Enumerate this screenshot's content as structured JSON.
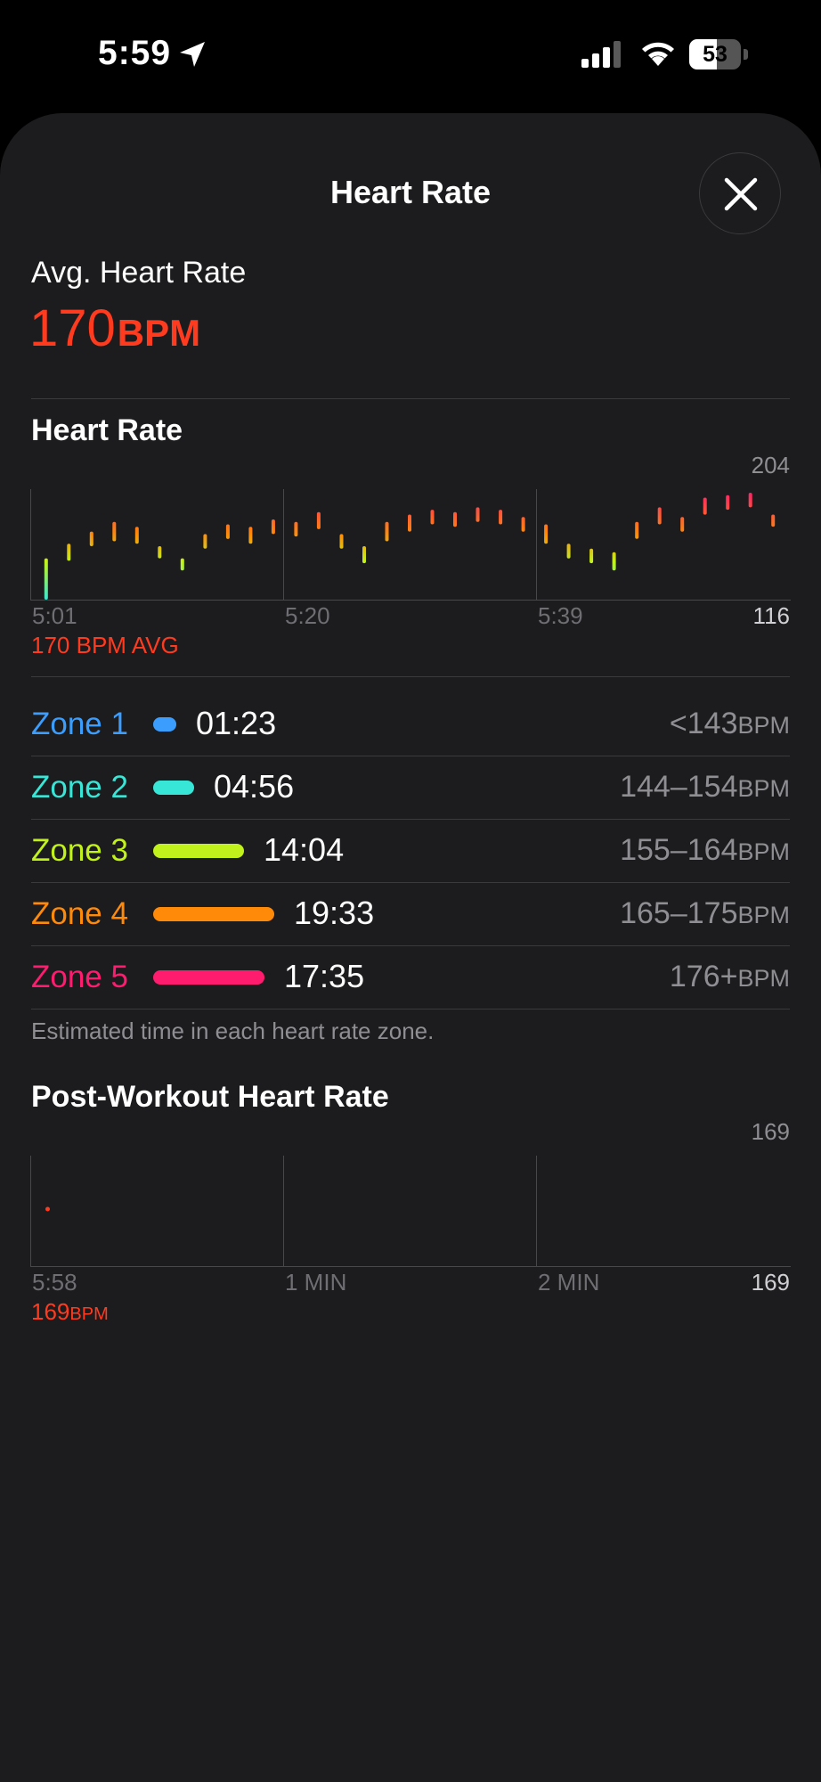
{
  "status_bar": {
    "time": "5:59",
    "battery_level": "53",
    "battery_fraction": 0.53
  },
  "sheet": {
    "title": "Heart Rate",
    "close_icon": "close-icon"
  },
  "summary": {
    "label": "Avg. Heart Rate",
    "value": "170",
    "unit": "BPM"
  },
  "heart_rate_chart": {
    "title": "Heart Rate",
    "y_max_label": "204",
    "y_min_label": "116",
    "x_labels": [
      "5:01",
      "5:20",
      "5:39"
    ],
    "avg_caption": "170 BPM AVG"
  },
  "zones": {
    "items": [
      {
        "name": "Zone 1",
        "time": "01:23",
        "range": "<143",
        "unit": "BPM",
        "color": "#3b9eff"
      },
      {
        "name": "Zone 2",
        "time": "04:56",
        "range": "144–154",
        "unit": "BPM",
        "color": "#37e6d6"
      },
      {
        "name": "Zone 3",
        "time": "14:04",
        "range": "155–164",
        "unit": "BPM",
        "color": "#c2f21b"
      },
      {
        "name": "Zone 4",
        "time": "19:33",
        "range": "165–175",
        "unit": "BPM",
        "color": "#ff8a0a"
      },
      {
        "name": "Zone 5",
        "time": "17:35",
        "range": "176+",
        "unit": "BPM",
        "color": "#ff1b6e"
      }
    ],
    "note": "Estimated time in each heart rate zone."
  },
  "post_workout": {
    "title": "Post-Workout Heart Rate",
    "y_max_label": "169",
    "y_min_label": "169",
    "x_labels": [
      "5:58",
      "1 MIN",
      "2 MIN"
    ],
    "value": "169",
    "unit": "BPM"
  },
  "chart_data": [
    {
      "type": "bar",
      "title": "Heart Rate",
      "xlabel": "",
      "ylabel": "",
      "ylim": [
        116,
        204
      ],
      "x_ticks": [
        "5:01",
        "5:20",
        "5:39"
      ],
      "avg": 170,
      "series": [
        {
          "values": [
            [
              116,
              150
            ],
            [
              148,
              162
            ],
            [
              160,
              172
            ],
            [
              164,
              180
            ],
            [
              162,
              176
            ],
            [
              150,
              160
            ],
            [
              140,
              150
            ],
            [
              158,
              170
            ],
            [
              166,
              178
            ],
            [
              162,
              176
            ],
            [
              170,
              182
            ],
            [
              168,
              180
            ],
            [
              174,
              188
            ],
            [
              158,
              170
            ],
            [
              146,
              160
            ],
            [
              164,
              180
            ],
            [
              172,
              186
            ],
            [
              178,
              190
            ],
            [
              176,
              188
            ],
            [
              180,
              192
            ],
            [
              178,
              190
            ],
            [
              172,
              184
            ],
            [
              162,
              178
            ],
            [
              150,
              162
            ],
            [
              146,
              158
            ],
            [
              140,
              155
            ],
            [
              166,
              180
            ],
            [
              178,
              192
            ],
            [
              172,
              184
            ],
            [
              186,
              200
            ],
            [
              190,
              202
            ],
            [
              192,
              204
            ],
            [
              176,
              186
            ]
          ]
        }
      ]
    },
    {
      "type": "scatter",
      "title": "Post-Workout Heart Rate",
      "xlabel": "",
      "ylabel": "",
      "x_ticks": [
        "5:58",
        "1 MIN",
        "2 MIN"
      ],
      "series": [
        {
          "x": [
            0.08
          ],
          "y": [
            169
          ]
        }
      ]
    }
  ]
}
